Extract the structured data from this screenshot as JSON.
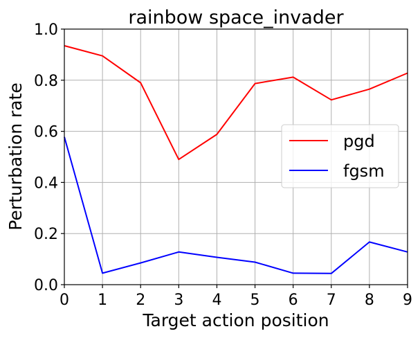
{
  "chart_data": {
    "type": "line",
    "title": "rainbow space_invader",
    "xlabel": "Target action position",
    "ylabel": "Perturbation rate",
    "x": [
      0,
      1,
      2,
      3,
      4,
      5,
      6,
      7,
      8,
      9
    ],
    "xlim": [
      0,
      9
    ],
    "ylim": [
      0.0,
      1.0
    ],
    "xticks": [
      "0",
      "1",
      "2",
      "3",
      "4",
      "5",
      "6",
      "7",
      "8",
      "9"
    ],
    "yticks": [
      "0.0",
      "0.2",
      "0.4",
      "0.6",
      "0.8",
      "1.0"
    ],
    "grid": true,
    "legend_position": "center-right",
    "series": [
      {
        "name": "pgd",
        "color": "#ff0000",
        "values": [
          0.935,
          0.895,
          0.79,
          0.49,
          0.588,
          0.787,
          0.812,
          0.723,
          0.765,
          0.828
        ]
      },
      {
        "name": "fgsm",
        "color": "#0000ff",
        "values": [
          0.578,
          0.045,
          0.085,
          0.128,
          0.107,
          0.088,
          0.045,
          0.044,
          0.167,
          0.128
        ]
      }
    ]
  }
}
